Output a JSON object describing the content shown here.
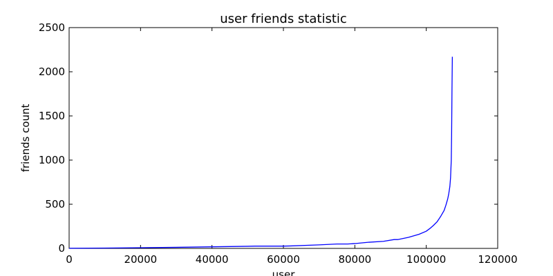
{
  "chart_data": {
    "type": "line",
    "title": "user friends statistic",
    "xlabel": "user",
    "ylabel": "friends count",
    "xlim": [
      0,
      120000
    ],
    "ylim": [
      0,
      2500
    ],
    "xticks": [
      0,
      20000,
      40000,
      60000,
      80000,
      100000,
      120000
    ],
    "yticks": [
      0,
      500,
      1000,
      1500,
      2000,
      2500
    ],
    "xtick_labels": [
      "0",
      "20000",
      "40000",
      "60000",
      "80000",
      "100000",
      "120000"
    ],
    "ytick_labels": [
      "0",
      "500",
      "1000",
      "1500",
      "2000",
      "2500"
    ],
    "grid": false,
    "line_color": "#0000ff",
    "series": [
      {
        "x": [
          0,
          10000,
          20000,
          30000,
          40000,
          50000,
          52000,
          60000,
          62000,
          70000,
          75000,
          78000,
          80000,
          84000,
          88000,
          91000,
          92000,
          95000,
          98000,
          100000,
          101000,
          102000,
          103000,
          104000,
          105000,
          105500,
          106000,
          106300,
          106600,
          106800,
          107000,
          107100,
          107200,
          107300
        ],
        "y": [
          2,
          4,
          8,
          12,
          18,
          24,
          26,
          26,
          28,
          40,
          50,
          50,
          55,
          70,
          80,
          100,
          100,
          125,
          160,
          195,
          225,
          260,
          300,
          360,
          430,
          490,
          560,
          620,
          700,
          800,
          1000,
          1300,
          1800,
          2170
        ]
      }
    ]
  }
}
